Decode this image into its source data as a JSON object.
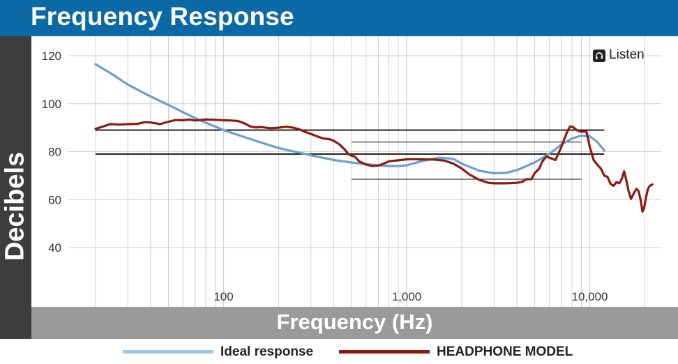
{
  "title": "Frequency Response",
  "brand": {
    "name": "Listen",
    "icon": "headphone-logo-icon"
  },
  "colors": {
    "title_bar": "#0b6aa6",
    "ylabel_band": "#3d3d3d",
    "xlabel_band": "#9a9a9a",
    "ideal": "#6a9fd0",
    "headphone": "#8c1a10",
    "grid": "#cfcfcf",
    "reference": "#111111"
  },
  "legend": {
    "ideal": "Ideal response",
    "headphone": "HEADPHONE MODEL"
  },
  "chart_data": {
    "type": "line",
    "xlabel": "Frequency (Hz)",
    "ylabel": "Decibels",
    "x_scale": "log",
    "xlim": [
      20,
      22000
    ],
    "ylim": [
      25,
      125
    ],
    "x_ticks": [
      {
        "value": 100,
        "label": "100"
      },
      {
        "value": 1000,
        "label": "1,000"
      },
      {
        "value": 10000,
        "label": "10,000"
      }
    ],
    "y_ticks": [
      {
        "value": 120,
        "label": "120"
      },
      {
        "value": 100,
        "label": "100"
      },
      {
        "value": 80,
        "label": "80"
      },
      {
        "value": 60,
        "label": "60"
      },
      {
        "value": 40,
        "label": "40"
      }
    ],
    "grid": true,
    "legend_position": "bottom",
    "reference_lines": [
      {
        "x": [
          20,
          12000
        ],
        "y": 89,
        "weight": "heavy"
      },
      {
        "x": [
          20,
          12000
        ],
        "y": 79,
        "weight": "heavy"
      },
      {
        "x": [
          500,
          9000
        ],
        "y": 84,
        "weight": "light"
      },
      {
        "x": [
          500,
          9000
        ],
        "y": 68.5,
        "weight": "light"
      }
    ],
    "series": [
      {
        "name": "Ideal response",
        "points": [
          [
            20,
            116.5
          ],
          [
            25,
            112
          ],
          [
            30,
            108
          ],
          [
            40,
            103
          ],
          [
            50,
            99.5
          ],
          [
            70,
            94
          ],
          [
            100,
            89
          ],
          [
            150,
            84.5
          ],
          [
            200,
            81.5
          ],
          [
            300,
            78.5
          ],
          [
            400,
            76.5
          ],
          [
            500,
            75.5
          ],
          [
            600,
            74.8
          ],
          [
            700,
            74.3
          ],
          [
            800,
            74
          ],
          [
            900,
            74
          ],
          [
            1000,
            74.3
          ],
          [
            1200,
            76
          ],
          [
            1500,
            77.5
          ],
          [
            1800,
            77
          ],
          [
            2000,
            75
          ],
          [
            2500,
            72
          ],
          [
            3000,
            71
          ],
          [
            3500,
            71.2
          ],
          [
            4000,
            72.3
          ],
          [
            5000,
            75.5
          ],
          [
            6000,
            79
          ],
          [
            7000,
            83
          ],
          [
            8000,
            85.5
          ],
          [
            9000,
            86.7
          ],
          [
            10000,
            86.5
          ],
          [
            11000,
            84
          ],
          [
            12000,
            80.5
          ]
        ]
      },
      {
        "name": "HEADPHONE MODEL",
        "points": [
          [
            20,
            89.5
          ],
          [
            22,
            90.5
          ],
          [
            24,
            91.5
          ],
          [
            27,
            91.3
          ],
          [
            30,
            91.5
          ],
          [
            34,
            91.6
          ],
          [
            37,
            92.3
          ],
          [
            40,
            92.2
          ],
          [
            45,
            91.5
          ],
          [
            50,
            92.5
          ],
          [
            55,
            93.2
          ],
          [
            60,
            93.1
          ],
          [
            65,
            93.4
          ],
          [
            70,
            93
          ],
          [
            75,
            93.2
          ],
          [
            80,
            93.4
          ],
          [
            90,
            93.3
          ],
          [
            100,
            93.1
          ],
          [
            110,
            93.0
          ],
          [
            120,
            92.8
          ],
          [
            130,
            91.8
          ],
          [
            140,
            90.5
          ],
          [
            150,
            90.1
          ],
          [
            160,
            90.3
          ],
          [
            170,
            90.0
          ],
          [
            180,
            89.8
          ],
          [
            200,
            90.0
          ],
          [
            220,
            90.4
          ],
          [
            240,
            90.0
          ],
          [
            260,
            89.3
          ],
          [
            280,
            88.2
          ],
          [
            300,
            87.4
          ],
          [
            330,
            86.2
          ],
          [
            350,
            85.5
          ],
          [
            380,
            85.2
          ],
          [
            400,
            84.5
          ],
          [
            430,
            83
          ],
          [
            460,
            80.8
          ],
          [
            480,
            79
          ],
          [
            500,
            78.3
          ],
          [
            520,
            78
          ],
          [
            550,
            76
          ],
          [
            600,
            74.6
          ],
          [
            650,
            74
          ],
          [
            700,
            74.2
          ],
          [
            750,
            75
          ],
          [
            800,
            76
          ],
          [
            900,
            76.4
          ],
          [
            1000,
            76.8
          ],
          [
            1100,
            76.9
          ],
          [
            1200,
            76.8
          ],
          [
            1400,
            76.7
          ],
          [
            1600,
            76.3
          ],
          [
            1800,
            75
          ],
          [
            2000,
            73
          ],
          [
            2200,
            70.5
          ],
          [
            2500,
            68.2
          ],
          [
            2800,
            67
          ],
          [
            3000,
            66.8
          ],
          [
            3500,
            66.8
          ],
          [
            4000,
            67
          ],
          [
            4300,
            67.5
          ],
          [
            4500,
            68.5
          ],
          [
            4800,
            68.5
          ],
          [
            5000,
            71
          ],
          [
            5300,
            73
          ],
          [
            5500,
            75.8
          ],
          [
            5800,
            78
          ],
          [
            6100,
            77.3
          ],
          [
            6500,
            76.5
          ],
          [
            7000,
            82
          ],
          [
            7500,
            88
          ],
          [
            7800,
            90.5
          ],
          [
            8100,
            90.3
          ],
          [
            8500,
            89
          ],
          [
            9000,
            88.3
          ],
          [
            9300,
            88.5
          ],
          [
            9600,
            88.3
          ],
          [
            10000,
            82
          ],
          [
            10500,
            76.5
          ],
          [
            11000,
            74.5
          ],
          [
            11500,
            73
          ],
          [
            12000,
            70
          ],
          [
            12500,
            69.5
          ],
          [
            13000,
            66.5
          ],
          [
            13500,
            65.8
          ],
          [
            14000,
            67.3
          ],
          [
            14500,
            66.8
          ],
          [
            15000,
            68.8
          ],
          [
            15400,
            71.8
          ],
          [
            15800,
            68.5
          ],
          [
            16300,
            63.5
          ],
          [
            16800,
            60.3
          ],
          [
            17500,
            63
          ],
          [
            18000,
            64.5
          ],
          [
            18500,
            63.5
          ],
          [
            19000,
            59.5
          ],
          [
            19400,
            55
          ],
          [
            19800,
            56.5
          ],
          [
            20300,
            61
          ],
          [
            20800,
            64.5
          ],
          [
            21300,
            65.8
          ],
          [
            22000,
            66.3
          ]
        ]
      }
    ]
  }
}
